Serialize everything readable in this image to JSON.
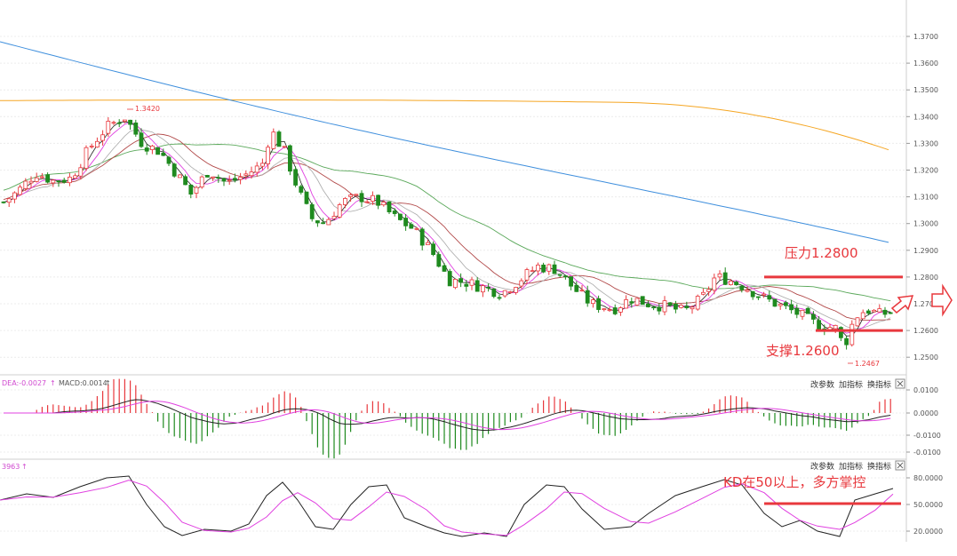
{
  "chart_data": [
    {
      "type": "candlestick",
      "price_ticks": [
        "1.3700",
        "1.3600",
        "1.3500",
        "1.3400",
        "1.3300",
        "1.3200",
        "1.3100",
        "1.3000",
        "1.2900",
        "1.2800",
        "1.2700",
        "1.2600",
        "1.2500"
      ],
      "ylim": [
        1.242,
        1.38
      ],
      "grid": true,
      "point_labels": {
        "high": "1.3420",
        "low": "1.2467"
      },
      "annotations": {
        "resistance": "压力1.2800",
        "support": "支撑1.2600"
      },
      "levels": {
        "resistance": 1.28,
        "support": 1.26
      },
      "colors": {
        "up": "#e8383d",
        "down": "#1f8a1f",
        "ma_long": "#f5a623",
        "ma_mid": "#3f8fdd",
        "ma_short": "#5aa85a",
        "ma_red": "#b24a4a",
        "ma_gray": "#aaaaaa",
        "ma_pink": "#e040e0",
        "ma_black": "#222222"
      }
    },
    {
      "type": "bar+line",
      "label_dea": "DEA:-0.0027",
      "label_macd": "MACD:0.0014",
      "ticks": [
        "0.0100",
        "0.0000",
        "-0.0100",
        "-0.0100"
      ],
      "buttons": [
        "改参数",
        "加指标",
        "换指标"
      ]
    },
    {
      "type": "line",
      "label": "3963",
      "ticks": [
        "80.0000",
        "50.0000",
        "20.0000"
      ],
      "buttons": [
        "改参数",
        "加指标",
        "换指标"
      ],
      "annotation": "KD在50以上，多方掌控",
      "level": 50
    }
  ]
}
